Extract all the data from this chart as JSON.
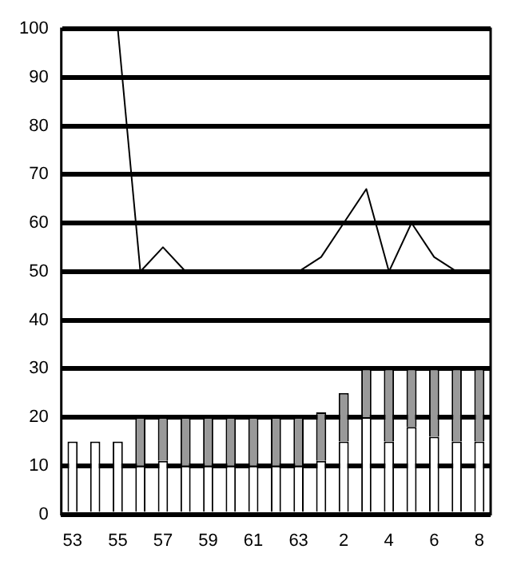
{
  "chart_data": {
    "type": "bar",
    "stacked": true,
    "categories": [
      "53",
      null,
      "55",
      null,
      "57",
      null,
      "59",
      null,
      "61",
      null,
      "63",
      null,
      "2",
      null,
      "4",
      null,
      "6",
      null,
      "8"
    ],
    "series": [
      {
        "color": "#ffffff",
        "values": [
          15,
          15,
          15,
          10,
          11,
          10,
          10,
          10,
          10,
          10,
          10,
          11,
          15,
          20,
          15,
          18,
          16,
          15,
          15
        ]
      },
      {
        "color": "#999999",
        "values": [
          0,
          0,
          0,
          10,
          9,
          10,
          10,
          10,
          10,
          10,
          10,
          10,
          10,
          10,
          15,
          12,
          14,
          15,
          15
        ]
      },
      {
        "type": "line",
        "color": "#000000",
        "values": [
          null,
          null,
          100,
          50,
          55,
          50,
          50,
          50,
          50,
          50,
          50,
          53,
          60,
          67,
          50,
          60,
          53,
          50,
          null
        ]
      }
    ],
    "ylim": [
      0,
      100
    ],
    "yticks": [
      0,
      10,
      20,
      30,
      40,
      50,
      60,
      70,
      80,
      90,
      100
    ],
    "grid": "y",
    "legend": false,
    "marker": "none"
  }
}
